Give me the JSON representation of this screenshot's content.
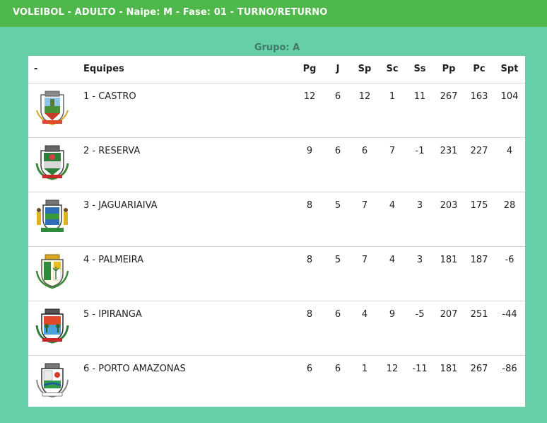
{
  "header": {
    "title": "VOLEIBOL - ADULTO - Naipe: M - Fase: 01 - TURNO/RETURNO"
  },
  "group": {
    "label": "Grupo: A"
  },
  "table": {
    "columns": [
      "-",
      "Equipes",
      "Pg",
      "J",
      "Sp",
      "Sc",
      "Ss",
      "Pp",
      "Pc",
      "Spt"
    ],
    "rows": [
      {
        "team": "1 - CASTRO",
        "crest": "castro-crest-icon",
        "pg": "12",
        "j": "6",
        "sp": "12",
        "sc": "1",
        "ss": "11",
        "pp": "267",
        "pc": "163",
        "spt": "104"
      },
      {
        "team": "2 - RESERVA",
        "crest": "reserva-crest-icon",
        "pg": "9",
        "j": "6",
        "sp": "6",
        "sc": "7",
        "ss": "-1",
        "pp": "231",
        "pc": "227",
        "spt": "4"
      },
      {
        "team": "3 - JAGUARIAIVA",
        "crest": "jaguariaiva-crest-icon",
        "pg": "8",
        "j": "5",
        "sp": "7",
        "sc": "4",
        "ss": "3",
        "pp": "203",
        "pc": "175",
        "spt": "28"
      },
      {
        "team": "4 - PALMEIRA",
        "crest": "palmeira-crest-icon",
        "pg": "8",
        "j": "5",
        "sp": "7",
        "sc": "4",
        "ss": "3",
        "pp": "181",
        "pc": "187",
        "spt": "-6"
      },
      {
        "team": "5 - IPIRANGA",
        "crest": "ipiranga-crest-icon",
        "pg": "8",
        "j": "6",
        "sp": "4",
        "sc": "9",
        "ss": "-5",
        "pp": "207",
        "pc": "251",
        "spt": "-44"
      },
      {
        "team": "6 - PORTO AMAZONAS",
        "crest": "porto-amazonas-crest-icon",
        "pg": "6",
        "j": "6",
        "sp": "1",
        "sc": "12",
        "ss": "-11",
        "pp": "181",
        "pc": "267",
        "spt": "-86"
      }
    ]
  },
  "colors": {
    "background": "#66cfa8",
    "topbar": "#4fb84a",
    "panel": "#ffffff"
  }
}
